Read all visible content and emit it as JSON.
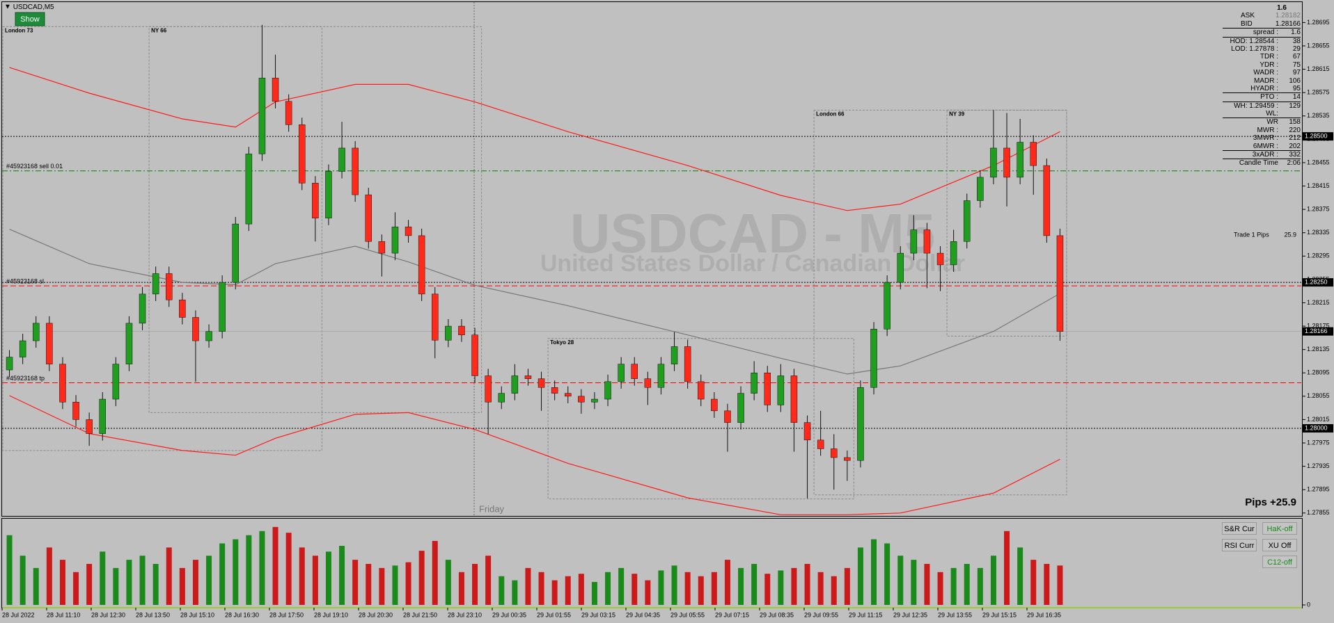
{
  "window": {
    "symbol": "USDCAD,M5",
    "show_button": "Show"
  },
  "chart_data": {
    "type": "candlestick",
    "watermark": "USDCAD - M5",
    "watermark_subtitle": "United States Dollar / Canadian Dollar",
    "day_label": "Friday",
    "up_color": "#1f9e1f",
    "down_color": "#ff2a1a",
    "wick_color": "#111111",
    "ylim": [
      1.2785,
      1.2873
    ],
    "yticks": [
      1.28695,
      1.28655,
      1.28615,
      1.28575,
      1.28535,
      1.28495,
      1.28455,
      1.28415,
      1.28375,
      1.28335,
      1.28295,
      1.28255,
      1.28215,
      1.28175,
      1.28135,
      1.28095,
      1.28055,
      1.28015,
      1.27975,
      1.27935,
      1.27895,
      1.27855
    ],
    "price_tags": [
      {
        "value": 1.285,
        "label": "1.28500"
      },
      {
        "value": 1.2825,
        "label": "1.28250"
      },
      {
        "value": 1.28166,
        "label": "1.28166"
      },
      {
        "value": 1.28,
        "label": "1.28000"
      }
    ],
    "candles": [
      [
        1.281,
        1.28134,
        1.28088,
        1.28122
      ],
      [
        1.28122,
        1.28162,
        1.2811,
        1.2815
      ],
      [
        1.2815,
        1.28192,
        1.28138,
        1.2818
      ],
      [
        1.2818,
        1.28192,
        1.28098,
        1.2811
      ],
      [
        1.2811,
        1.28122,
        1.28033,
        1.28045
      ],
      [
        1.28045,
        1.28057,
        1.28003,
        1.28015
      ],
      [
        1.28015,
        1.28027,
        1.2797,
        1.27991
      ],
      [
        1.27991,
        1.28062,
        1.27979,
        1.2805
      ],
      [
        1.2805,
        1.28122,
        1.28038,
        1.2811
      ],
      [
        1.2811,
        1.28192,
        1.28098,
        1.2818
      ],
      [
        1.2818,
        1.28242,
        1.28168,
        1.2823
      ],
      [
        1.2823,
        1.28277,
        1.28218,
        1.28265
      ],
      [
        1.28265,
        1.28277,
        1.28208,
        1.2822
      ],
      [
        1.2822,
        1.28232,
        1.28178,
        1.2819
      ],
      [
        1.2819,
        1.28202,
        1.2808,
        1.2815
      ],
      [
        1.2815,
        1.28178,
        1.28138,
        1.28166
      ],
      [
        1.28166,
        1.28262,
        1.28154,
        1.2825
      ],
      [
        1.2825,
        1.28362,
        1.28238,
        1.2835
      ],
      [
        1.2835,
        1.28482,
        1.28338,
        1.2847
      ],
      [
        1.2847,
        1.28691,
        1.28458,
        1.286
      ],
      [
        1.286,
        1.2864,
        1.28548,
        1.2856
      ],
      [
        1.2856,
        1.28572,
        1.28508,
        1.2852
      ],
      [
        1.2852,
        1.28532,
        1.28408,
        1.2842
      ],
      [
        1.2842,
        1.28432,
        1.2832,
        1.2836
      ],
      [
        1.2836,
        1.28452,
        1.28348,
        1.2844
      ],
      [
        1.2844,
        1.28525,
        1.28428,
        1.2848
      ],
      [
        1.2848,
        1.28492,
        1.28388,
        1.284
      ],
      [
        1.284,
        1.28412,
        1.28308,
        1.2832
      ],
      [
        1.2832,
        1.28332,
        1.2826,
        1.283
      ],
      [
        1.283,
        1.2837,
        1.28288,
        1.28345
      ],
      [
        1.28345,
        1.28357,
        1.28318,
        1.2833
      ],
      [
        1.2833,
        1.28342,
        1.28218,
        1.2823
      ],
      [
        1.2823,
        1.28242,
        1.2812,
        1.28151
      ],
      [
        1.28151,
        1.28187,
        1.28139,
        1.28175
      ],
      [
        1.28175,
        1.28187,
        1.28148,
        1.2816
      ],
      [
        1.2816,
        1.28172,
        1.28078,
        1.2809
      ],
      [
        1.2809,
        1.28102,
        1.2799,
        1.28045
      ],
      [
        1.28045,
        1.28072,
        1.28033,
        1.2806
      ],
      [
        1.2806,
        1.2811,
        1.28048,
        1.2809
      ],
      [
        1.2809,
        1.28102,
        1.28073,
        1.28085
      ],
      [
        1.28085,
        1.28097,
        1.2803,
        1.2807
      ],
      [
        1.2807,
        1.28082,
        1.28048,
        1.2806
      ],
      [
        1.2806,
        1.28072,
        1.28043,
        1.28055
      ],
      [
        1.28055,
        1.28067,
        1.28025,
        1.28045
      ],
      [
        1.28045,
        1.28062,
        1.28033,
        1.2805
      ],
      [
        1.2805,
        1.28092,
        1.28038,
        1.2808
      ],
      [
        1.2808,
        1.28122,
        1.28068,
        1.2811
      ],
      [
        1.2811,
        1.28122,
        1.28073,
        1.28085
      ],
      [
        1.28085,
        1.28097,
        1.2804,
        1.2807
      ],
      [
        1.2807,
        1.28122,
        1.28058,
        1.2811
      ],
      [
        1.2811,
        1.28165,
        1.28098,
        1.2814
      ],
      [
        1.2814,
        1.28152,
        1.28068,
        1.2808
      ],
      [
        1.2808,
        1.28092,
        1.28038,
        1.2805
      ],
      [
        1.2805,
        1.28062,
        1.28018,
        1.2803
      ],
      [
        1.2803,
        1.28042,
        1.2796,
        1.2801
      ],
      [
        1.2801,
        1.28072,
        1.27998,
        1.2806
      ],
      [
        1.2806,
        1.28115,
        1.28048,
        1.28095
      ],
      [
        1.28095,
        1.28107,
        1.28028,
        1.2804
      ],
      [
        1.2804,
        1.2811,
        1.28028,
        1.2809
      ],
      [
        1.2809,
        1.28102,
        1.2796,
        1.2801
      ],
      [
        1.2801,
        1.28022,
        1.2788,
        1.2798
      ],
      [
        1.2798,
        1.2803,
        1.27953,
        1.27965
      ],
      [
        1.27965,
        1.2799,
        1.27895,
        1.2795
      ],
      [
        1.2795,
        1.27962,
        1.2791,
        1.27945
      ],
      [
        1.27945,
        1.28082,
        1.27933,
        1.2807
      ],
      [
        1.2807,
        1.28182,
        1.28058,
        1.2817
      ],
      [
        1.2817,
        1.28262,
        1.28158,
        1.2825
      ],
      [
        1.2825,
        1.28312,
        1.28238,
        1.283
      ],
      [
        1.283,
        1.28365,
        1.28288,
        1.2834
      ],
      [
        1.2834,
        1.28352,
        1.2824,
        1.283
      ],
      [
        1.283,
        1.28312,
        1.28235,
        1.2828
      ],
      [
        1.2828,
        1.2834,
        1.28268,
        1.2832
      ],
      [
        1.2832,
        1.28402,
        1.28308,
        1.2839
      ],
      [
        1.2839,
        1.28442,
        1.28378,
        1.2843
      ],
      [
        1.2843,
        1.28545,
        1.28418,
        1.2848
      ],
      [
        1.2848,
        1.2854,
        1.2838,
        1.2843
      ],
      [
        1.2843,
        1.2853,
        1.28418,
        1.2849
      ],
      [
        1.2849,
        1.28502,
        1.284,
        1.2845
      ],
      [
        1.2845,
        1.28462,
        1.28318,
        1.2833
      ],
      [
        1.2833,
        1.28342,
        1.2815,
        1.28166
      ]
    ],
    "bands": {
      "x": [
        0,
        6,
        13,
        17,
        20,
        26,
        30,
        35,
        42,
        51,
        58,
        63,
        67,
        74,
        79
      ],
      "upper": [
        1.28618,
        1.28574,
        1.2853,
        1.28516,
        1.28559,
        1.28589,
        1.28589,
        1.28559,
        1.28508,
        1.2845,
        1.28399,
        1.28373,
        1.28384,
        1.2845,
        1.28508
      ],
      "middle": [
        1.28341,
        1.28282,
        1.2825,
        1.28246,
        1.28282,
        1.28312,
        1.28285,
        1.28245,
        1.2821,
        1.2816,
        1.2812,
        1.28093,
        1.28107,
        1.28166,
        1.28231
      ],
      "lower": [
        1.28056,
        1.27991,
        1.27962,
        1.27954,
        1.27983,
        1.28024,
        1.28027,
        1.27998,
        1.2794,
        1.27881,
        1.27852,
        1.27852,
        1.27855,
        1.27889,
        1.27947
      ],
      "upper_color": "#ff1a1a",
      "middle_color": "#777777",
      "lower_color": "#ff1a1a"
    },
    "levels": [
      {
        "name": "#45923168 sell 0.01",
        "value": 1.28441,
        "color": "#008000"
      },
      {
        "name": "#45923168 sl",
        "value": 1.28244,
        "color": "#ff0000"
      },
      {
        "name": "#45923168 tp",
        "value": 1.28078,
        "color": "#ff0000"
      }
    ],
    "sessions": [
      {
        "label": "London 73",
        "high": 1.28688,
        "low": 1.27962,
        "first_candle": 0,
        "last_candle": 23
      },
      {
        "label": "NY 66",
        "high": 1.28688,
        "low": 1.28027,
        "first_candle": 11,
        "last_candle": 35
      },
      {
        "label": "Tokyo 28",
        "high": 1.28154,
        "low": 1.27879,
        "first_candle": 41,
        "last_candle": 63
      },
      {
        "label": "London 66",
        "high": 1.28545,
        "low": 1.27886,
        "first_candle": 61,
        "last_candle": 79
      },
      {
        "label": "NY 39",
        "high": 1.28545,
        "low": 1.28158,
        "first_candle": 71,
        "last_candle": 79
      }
    ],
    "x_labels": [
      "28 Jul 2022",
      "28 Jul 11:10",
      "28 Jul 12:30",
      "28 Jul 13:50",
      "28 Jul 15:10",
      "28 Jul 16:30",
      "28 Jul 17:50",
      "28 Jul 19:10",
      "28 Jul 20:30",
      "28 Jul 21:50",
      "28 Jul 23:10",
      "29 Jul 00:35",
      "29 Jul 01:55",
      "29 Jul 03:15",
      "29 Jul 04:35",
      "29 Jul 05:55",
      "29 Jul 07:15",
      "29 Jul 08:35",
      "29 Jul 09:55",
      "29 Jul 11:15",
      "29 Jul 12:35",
      "29 Jul 13:55",
      "29 Jul 15:15",
      "29 Jul 16:35"
    ]
  },
  "volume": {
    "type": "bar",
    "ylim": [
      0,
      100
    ],
    "yticks": [
      0
    ],
    "values": [
      85,
      60,
      45,
      70,
      55,
      40,
      50,
      65,
      45,
      55,
      60,
      50,
      70,
      45,
      55,
      60,
      75,
      80,
      85,
      90,
      95,
      88,
      70,
      60,
      65,
      72,
      55,
      50,
      45,
      48,
      52,
      66,
      78,
      55,
      40,
      50,
      60,
      35,
      30,
      45,
      40,
      30,
      35,
      38,
      28,
      40,
      45,
      38,
      30,
      42,
      48,
      40,
      35,
      40,
      55,
      45,
      50,
      38,
      42,
      45,
      50,
      40,
      35,
      45,
      70,
      80,
      75,
      60,
      55,
      50,
      40,
      45,
      50,
      45,
      60,
      90,
      70,
      55,
      50,
      48
    ]
  },
  "info_panel": {
    "header": "1.6",
    "ask_label": "ASK",
    "ask": "1.28182",
    "bid_label": "BID",
    "bid": "1.28166",
    "rows": [
      {
        "label": "spread :",
        "value": "1.6"
      },
      {
        "label": "HOD: 1.28544 :",
        "value": "38"
      },
      {
        "label": "LOD: 1.27878 :",
        "value": "29"
      },
      {
        "label": "TDR :",
        "value": "67"
      },
      {
        "label": "YDR :",
        "value": "75"
      },
      {
        "label": "WADR :",
        "value": "97"
      },
      {
        "label": "MADR :",
        "value": "106"
      },
      {
        "label": "HYADR :",
        "value": "95"
      },
      {
        "label": "PTO :",
        "value": "14"
      },
      {
        "label": "WH: 1.29459 :",
        "value": "129"
      },
      {
        "label": "WL:"
      },
      {
        "label": "WR",
        "value": "158"
      },
      {
        "label": "MWR :",
        "value": "220"
      },
      {
        "label": "3MWR :",
        "value": "212"
      },
      {
        "label": "6MWR :",
        "value": "202"
      },
      {
        "label": "3xADR :",
        "value": "332"
      },
      {
        "label": "Candle Time",
        "value": "2:06"
      }
    ]
  },
  "trade": {
    "label": "Trade 1 Pips",
    "value": "25.9"
  },
  "pips": "Pips +25.9",
  "buttons": [
    {
      "label": "S&R Cur",
      "color": "#000000"
    },
    {
      "label": "HaK-off",
      "color": "#1a8a1a"
    },
    {
      "label": "RSI Curr",
      "color": "#000000"
    },
    {
      "label": "XU Off",
      "color": "#000000"
    },
    {
      "label": "C12-off",
      "color": "#1a8a1a"
    }
  ]
}
